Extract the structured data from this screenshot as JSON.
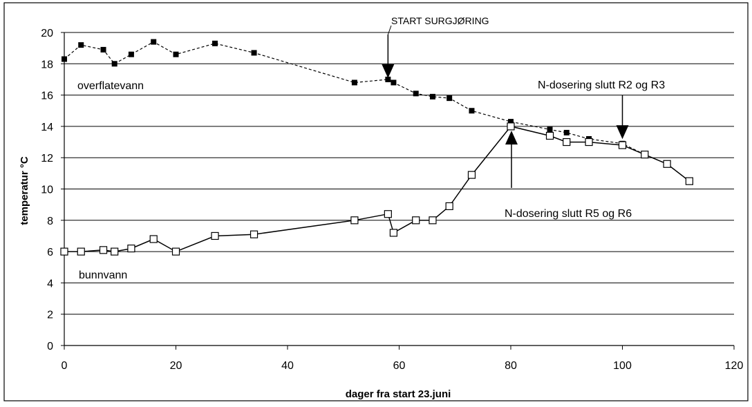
{
  "chart_data": {
    "type": "line",
    "title": "",
    "xlabel": "dager fra start 23.juni",
    "ylabel": "temperatur °C",
    "xlim": [
      0,
      120
    ],
    "ylim": [
      0,
      20
    ],
    "xticks": [
      0,
      20,
      40,
      60,
      80,
      100,
      120
    ],
    "yticks": [
      0,
      2,
      4,
      6,
      8,
      10,
      12,
      14,
      16,
      18,
      20
    ],
    "grid": "horizontal",
    "series": [
      {
        "name": "overflatevann",
        "line_style": "dashed",
        "marker": "filled-square",
        "x": [
          0,
          3,
          7,
          9,
          12,
          16,
          20,
          27,
          34,
          52,
          58,
          59,
          63,
          66,
          69,
          73,
          80,
          87,
          90,
          94,
          100,
          104,
          108,
          112
        ],
        "y": [
          18.3,
          19.2,
          18.9,
          18.0,
          18.6,
          19.4,
          18.6,
          19.3,
          18.7,
          16.8,
          17.0,
          16.8,
          16.1,
          15.9,
          15.8,
          15.0,
          14.3,
          13.8,
          13.6,
          13.2,
          12.9,
          12.2,
          11.6,
          10.5
        ]
      },
      {
        "name": "bunnvann",
        "line_style": "solid",
        "marker": "open-square",
        "x": [
          0,
          3,
          7,
          9,
          12,
          16,
          20,
          27,
          34,
          52,
          58,
          59,
          63,
          66,
          69,
          73,
          80,
          87,
          90,
          94,
          100,
          104,
          108,
          112
        ],
        "y": [
          6.0,
          6.0,
          6.1,
          6.0,
          6.2,
          6.8,
          6.0,
          7.0,
          7.1,
          8.0,
          8.4,
          7.2,
          8.0,
          8.0,
          8.9,
          10.9,
          14.0,
          13.4,
          13.0,
          13.0,
          12.8,
          12.2,
          11.6,
          10.5
        ]
      }
    ],
    "annotations": [
      {
        "text": "START SURGJØRING",
        "arrow_x": 58,
        "arrow_tip_y": 17.0,
        "arrow_direction": "down"
      },
      {
        "text": "N-dosering slutt R2 og R3",
        "arrow_x": 100,
        "arrow_tip_y": 13.1,
        "arrow_direction": "down"
      },
      {
        "text": "N-dosering slutt R5 og R6",
        "arrow_x": 80,
        "arrow_tip_y": 13.9,
        "arrow_direction": "up"
      },
      {
        "text": "overflatevann",
        "series_label": true
      },
      {
        "text": "bunnvann",
        "series_label": true
      }
    ]
  }
}
